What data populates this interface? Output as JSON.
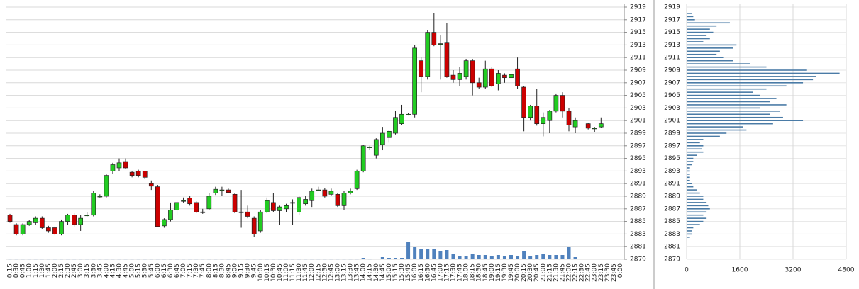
{
  "chart_data": [
    {
      "type": "candlestick",
      "categories": [
        "0:15",
        "0:30",
        "0:45",
        "1:00",
        "1:15",
        "1:30",
        "1:45",
        "2:00",
        "2:15",
        "2:30",
        "2:45",
        "3:00",
        "3:15",
        "3:30",
        "3:45",
        "4:00",
        "4:15",
        "4:30",
        "4:45",
        "5:00",
        "5:15",
        "5:30",
        "5:45",
        "6:00",
        "6:15",
        "6:30",
        "6:45",
        "7:00",
        "7:15",
        "7:30",
        "7:45",
        "8:00",
        "8:15",
        "8:30",
        "8:45",
        "9:00",
        "9:15",
        "9:30",
        "9:45",
        "10:00",
        "10:15",
        "10:30",
        "10:45",
        "11:00",
        "11:15",
        "11:30",
        "11:45",
        "12:00",
        "12:15",
        "12:30",
        "12:45",
        "13:00",
        "13:15",
        "13:30",
        "13:45",
        "14:00",
        "14:15",
        "14:30",
        "14:45",
        "15:00",
        "15:15",
        "15:30",
        "15:45",
        "16:00",
        "16:15",
        "16:30",
        "16:45",
        "17:00",
        "17:15",
        "17:30",
        "17:45",
        "18:00",
        "18:15",
        "18:30",
        "18:45",
        "19:00",
        "19:15",
        "19:30",
        "19:45",
        "20:00",
        "20:15",
        "20:30",
        "20:45",
        "21:00",
        "21:15",
        "21:30",
        "21:45",
        "22:00",
        "22:15",
        "22:30",
        "22:45",
        "23:00",
        "23:15",
        "23:30",
        "23:45",
        "0:00"
      ],
      "open": [
        2886,
        2884.5,
        2883,
        2884.5,
        2884.8,
        2885.5,
        2884,
        2884,
        2883,
        2885,
        2886,
        2884.5,
        2886,
        2886,
        2889,
        2889,
        2893,
        2893.5,
        2894.5,
        2892.8,
        2893,
        2893,
        2891,
        2890.5,
        2884.3,
        2885.3,
        2886.8,
        2888.3,
        2888.7,
        2888,
        2886.5,
        2887,
        2889.5,
        2890,
        2890,
        2889.3,
        2886.5,
        2886.5,
        2885.5,
        2883.5,
        2886.5,
        2888,
        2886.7,
        2887,
        2888,
        2886.5,
        2887.8,
        2888.3,
        2890,
        2890,
        2889.3,
        2889.3,
        2887.5,
        2889.5,
        2890.2,
        2893,
        2896.8,
        2895.5,
        2897.2,
        2898.3,
        2899,
        2900.5,
        2902,
        2902,
        2910.5,
        2908,
        2915,
        2913.2,
        2913.3,
        2908.2,
        2907.5,
        2908,
        2910.5,
        2907,
        2906.3,
        2909.2,
        2906.8,
        2908.2,
        2907.8,
        2909.2,
        2906.3,
        2901.5,
        2903.3,
        2900.5,
        2901,
        2902.5,
        2905,
        2902.5,
        2900,
        null,
        2900.5,
        2899.8,
        2900,
        null,
        null,
        null
      ],
      "high": [
        2886.2,
        2884.7,
        2884.7,
        2885.2,
        2885.8,
        2885.8,
        2884.3,
        2884.2,
        2885.3,
        2886.2,
        2886.3,
        2886,
        2886.5,
        2889.8,
        2889.3,
        2892.5,
        2894.3,
        2895,
        2895,
        2893,
        2893.2,
        2893,
        2891.5,
        2890.8,
        2885.5,
        2888,
        2888.3,
        2888.8,
        2889,
        2888.2,
        2887,
        2889.5,
        2890.5,
        2890.5,
        2890.2,
        2889.5,
        2890,
        2887.5,
        2885.8,
        2886.8,
        2888.8,
        2889.5,
        2887.5,
        2887.8,
        2888.5,
        2889,
        2889,
        2890.2,
        2890.5,
        2890.3,
        2890.2,
        2889.5,
        2889.8,
        2890.2,
        2893.2,
        2897.2,
        2897,
        2898.2,
        2900,
        2899.5,
        2902.5,
        2903.5,
        2902.2,
        2913,
        2911,
        2915.3,
        2918,
        2914.5,
        2916.5,
        2909,
        2909.5,
        2910.8,
        2910.8,
        2907.8,
        2910.5,
        2909.5,
        2909,
        2908.5,
        2910.8,
        2911,
        2906.5,
        2903.5,
        2906,
        2902.3,
        2902.7,
        2905.3,
        2905.5,
        2903,
        2901.5,
        null,
        2900.6,
        2900,
        2901.5,
        null,
        null,
        null
      ],
      "low": [
        2884.8,
        2882.8,
        2882.8,
        2884.3,
        2884.5,
        2883.8,
        2883.2,
        2882.8,
        2882.8,
        2884.5,
        2884.2,
        2883.5,
        2885.8,
        2885.8,
        2888.8,
        2888.8,
        2892.5,
        2893,
        2893.3,
        2892,
        2892,
        2891.8,
        2890,
        2884.2,
        2884,
        2885,
        2886,
        2888,
        2887.5,
        2886.3,
        2886.2,
        2886.8,
        2889.2,
        2889,
        2889.5,
        2886.3,
        2884,
        2885.5,
        2882.5,
        2883.2,
        2886.3,
        2886.5,
        2884.5,
        2886.5,
        2884.5,
        2886,
        2887.5,
        2887.3,
        2889.8,
        2888.8,
        2889,
        2887.3,
        2886.8,
        2889.3,
        2890,
        2892.8,
        2896.3,
        2895,
        2896.3,
        2897.5,
        2898.8,
        2900.3,
        2901.8,
        2901.5,
        2905.5,
        2907.5,
        2912.8,
        2907.5,
        2907.8,
        2907,
        2906.5,
        2907.5,
        2905,
        2906,
        2906,
        2906.3,
        2905.8,
        2907,
        2907,
        2906,
        2899.3,
        2901,
        2900.2,
        2898.5,
        2899,
        2902.3,
        2901.5,
        2899.3,
        2899,
        null,
        2899.6,
        2899.2,
        2899.8,
        null,
        null,
        null
      ],
      "close": [
        2885,
        2883,
        2884.5,
        2885,
        2885.5,
        2884,
        2883.5,
        2883,
        2885,
        2886,
        2884.5,
        2885.5,
        2886,
        2889.5,
        2889,
        2892.3,
        2894,
        2894.3,
        2893.5,
        2892.3,
        2892.3,
        2892,
        2890.6,
        2884.2,
        2885.3,
        2886.8,
        2888,
        2888.3,
        2887.8,
        2886.5,
        2886.5,
        2889,
        2890.1,
        2890,
        2889.6,
        2886.5,
        2886.5,
        2885.8,
        2883,
        2886.5,
        2888.3,
        2886.7,
        2887.3,
        2887.5,
        2888,
        2888.8,
        2888.5,
        2889.8,
        2890,
        2889,
        2889.8,
        2887.5,
        2889.5,
        2889.8,
        2893,
        2897,
        2896.8,
        2898,
        2899,
        2899.3,
        2901.5,
        2902,
        2902,
        2912.5,
        2908,
        2915,
        2913,
        2913.2,
        2908,
        2907.5,
        2908.5,
        2910.5,
        2907,
        2906.3,
        2909.2,
        2906.5,
        2908.5,
        2907.8,
        2908.3,
        2906.5,
        2901.5,
        2903.3,
        2900.5,
        2901.5,
        2902.5,
        2905,
        2902.5,
        2900.3,
        2901,
        null,
        2899.8,
        2899.8,
        2900.5,
        null,
        null,
        null
      ],
      "volume": [
        0.5,
        0.5,
        0.5,
        0.5,
        0.5,
        0.5,
        0.5,
        0.5,
        0.5,
        0.5,
        0.5,
        0.5,
        0.5,
        0.5,
        0.5,
        0.5,
        0.5,
        0.5,
        0.5,
        0.5,
        0.5,
        0.5,
        0.5,
        0.5,
        0.5,
        0.5,
        0.5,
        0.5,
        0.5,
        0.5,
        0.5,
        0.5,
        0.5,
        0.5,
        0.5,
        0.5,
        1,
        0.5,
        0.5,
        0.5,
        0.5,
        0.5,
        0.5,
        0.5,
        0.5,
        0.5,
        0.5,
        0.5,
        0.5,
        0.5,
        0.5,
        0.5,
        0.5,
        0.5,
        0.5,
        2,
        0.5,
        1,
        3,
        2,
        2,
        2,
        25,
        17,
        15,
        15,
        14,
        11,
        13,
        7,
        5,
        5,
        8,
        6,
        6,
        5,
        6,
        5,
        6,
        5,
        11,
        5,
        6,
        7,
        6,
        6,
        6,
        17,
        3,
        null,
        1,
        1,
        1,
        null,
        null,
        null
      ],
      "up_color": "#22cc22",
      "down_color": "#cc0000",
      "volume_color": "#4f81bd",
      "ylim": [
        2879,
        2919
      ],
      "yticks": [
        2919,
        2917,
        2915,
        2913,
        2911,
        2909,
        2907,
        2905,
        2903,
        2901,
        2899,
        2897,
        2895,
        2893,
        2891,
        2889,
        2887,
        2885,
        2883,
        2881,
        2879
      ],
      "volume_ylim": [
        0,
        30
      ],
      "grid": true
    },
    {
      "type": "volume-profile",
      "prices": [
        2918,
        2917.5,
        2917,
        2916.5,
        2916,
        2915.5,
        2915,
        2914.5,
        2914,
        2913.5,
        2913,
        2912.5,
        2912,
        2911.5,
        2911,
        2910.5,
        2910,
        2909.5,
        2909,
        2908.5,
        2908,
        2907.5,
        2907,
        2906.5,
        2906,
        2905.5,
        2905,
        2904.5,
        2904,
        2903.5,
        2903,
        2902.5,
        2902,
        2901.5,
        2901,
        2900.5,
        2900,
        2899.5,
        2899,
        2898.5,
        2898,
        2897.5,
        2897,
        2896.5,
        2896,
        2895.5,
        2895,
        2894.5,
        2894,
        2893.5,
        2893,
        2892.5,
        2892,
        2891.5,
        2891,
        2890.5,
        2890,
        2889.5,
        2889,
        2888.5,
        2888,
        2887.5,
        2887,
        2886.5,
        2886,
        2885.5,
        2885,
        2884.5,
        2884,
        2883.5,
        2883,
        2882.5
      ],
      "values": [
        150,
        200,
        250,
        1300,
        900,
        700,
        800,
        600,
        700,
        500,
        1500,
        1400,
        1000,
        900,
        1100,
        1400,
        1900,
        2400,
        3600,
        4600,
        3900,
        3800,
        3500,
        3000,
        2400,
        2000,
        2200,
        2700,
        2500,
        3000,
        2200,
        2800,
        2500,
        2900,
        3500,
        2600,
        1700,
        1800,
        1200,
        1000,
        500,
        400,
        500,
        450,
        500,
        300,
        200,
        200,
        150,
        100,
        100,
        100,
        100,
        100,
        150,
        200,
        300,
        400,
        500,
        500,
        600,
        650,
        700,
        600,
        500,
        600,
        500,
        400,
        200,
        150,
        150,
        100
      ],
      "color": "#4a7ba6",
      "xlim": [
        0,
        4800
      ],
      "xticks": [
        0,
        1600,
        3200,
        4800
      ],
      "ylim": [
        2879,
        2919
      ],
      "yticks": [
        2919,
        2917,
        2915,
        2913,
        2911,
        2909,
        2907,
        2905,
        2903,
        2901,
        2899,
        2897,
        2895,
        2893,
        2891,
        2889,
        2887,
        2885,
        2883,
        2881,
        2879
      ],
      "grid": true
    }
  ]
}
